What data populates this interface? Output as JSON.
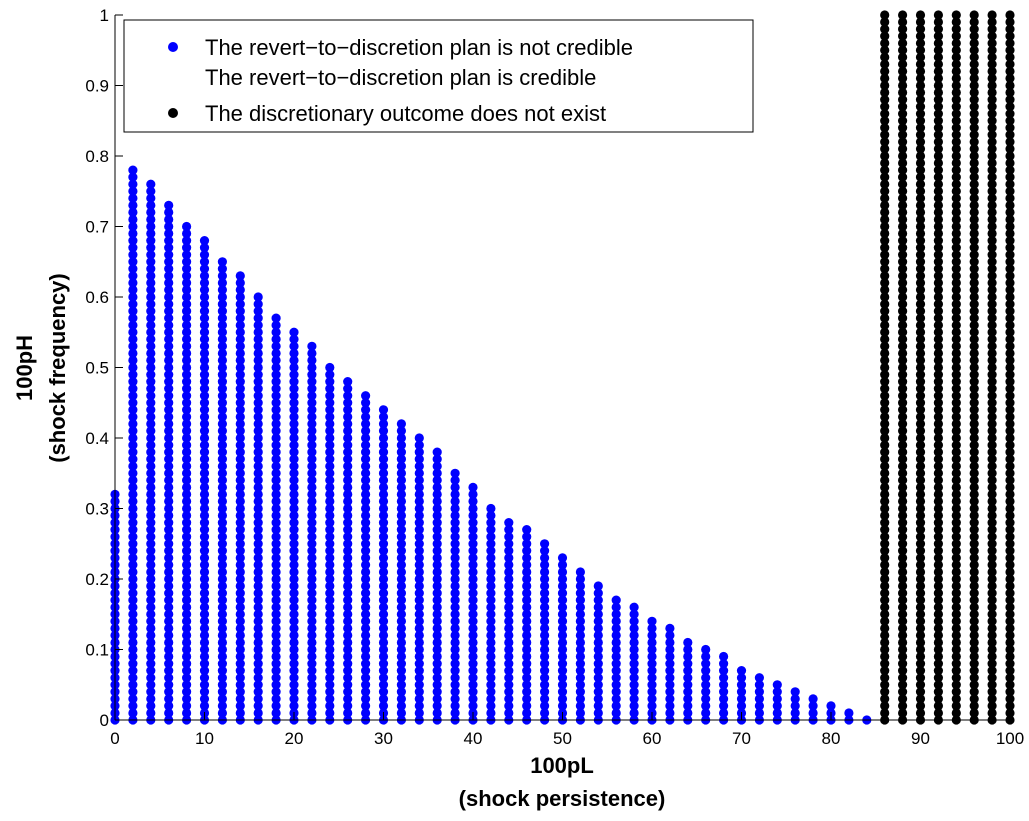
{
  "chart_data": {
    "type": "scatter",
    "title": "",
    "xlabel_lines": [
      "100pL",
      "(shock persistence)"
    ],
    "ylabel_lines": [
      "100pH",
      "(shock frequency)"
    ],
    "xlim": [
      0,
      100
    ],
    "ylim": [
      0,
      1
    ],
    "xticks": [
      "0",
      "10",
      "20",
      "30",
      "40",
      "50",
      "60",
      "70",
      "80",
      "90",
      "100"
    ],
    "yticks": [
      "0",
      "0.1",
      "0.2",
      "0.3",
      "0.4",
      "0.5",
      "0.6",
      "0.7",
      "0.8",
      "0.9",
      "1"
    ],
    "grid": false,
    "legend_position": "top-left",
    "legend": [
      {
        "label": "The revert−to−discretion plan is not credible",
        "color": "#0000ff",
        "marker": "dot"
      },
      {
        "label": "The revert−to−discretion plan is credible",
        "color": "",
        "marker": "none"
      },
      {
        "label": "The discretionary outcome does not exist",
        "color": "#000000",
        "marker": "dot"
      }
    ],
    "series": [
      {
        "name": "The revert−to−discretion plan is not credible",
        "color": "#0000ff",
        "y_step": 0.01,
        "columns": [
          {
            "x": 0,
            "ymax": 0.32
          },
          {
            "x": 2,
            "ymax": 0.78
          },
          {
            "x": 4,
            "ymax": 0.76
          },
          {
            "x": 6,
            "ymax": 0.73
          },
          {
            "x": 8,
            "ymax": 0.7
          },
          {
            "x": 10,
            "ymax": 0.68
          },
          {
            "x": 12,
            "ymax": 0.65
          },
          {
            "x": 14,
            "ymax": 0.63
          },
          {
            "x": 16,
            "ymax": 0.6
          },
          {
            "x": 18,
            "ymax": 0.57
          },
          {
            "x": 20,
            "ymax": 0.55
          },
          {
            "x": 22,
            "ymax": 0.53
          },
          {
            "x": 24,
            "ymax": 0.5
          },
          {
            "x": 26,
            "ymax": 0.48
          },
          {
            "x": 28,
            "ymax": 0.46
          },
          {
            "x": 30,
            "ymax": 0.44
          },
          {
            "x": 32,
            "ymax": 0.42
          },
          {
            "x": 34,
            "ymax": 0.4
          },
          {
            "x": 36,
            "ymax": 0.38
          },
          {
            "x": 38,
            "ymax": 0.35
          },
          {
            "x": 40,
            "ymax": 0.33
          },
          {
            "x": 42,
            "ymax": 0.3
          },
          {
            "x": 44,
            "ymax": 0.28
          },
          {
            "x": 46,
            "ymax": 0.27
          },
          {
            "x": 48,
            "ymax": 0.25
          },
          {
            "x": 50,
            "ymax": 0.23
          },
          {
            "x": 52,
            "ymax": 0.21
          },
          {
            "x": 54,
            "ymax": 0.19
          },
          {
            "x": 56,
            "ymax": 0.17
          },
          {
            "x": 58,
            "ymax": 0.16
          },
          {
            "x": 60,
            "ymax": 0.14
          },
          {
            "x": 62,
            "ymax": 0.13
          },
          {
            "x": 64,
            "ymax": 0.11
          },
          {
            "x": 66,
            "ymax": 0.1
          },
          {
            "x": 68,
            "ymax": 0.09
          },
          {
            "x": 70,
            "ymax": 0.07
          },
          {
            "x": 72,
            "ymax": 0.06
          },
          {
            "x": 74,
            "ymax": 0.05
          },
          {
            "x": 76,
            "ymax": 0.04
          },
          {
            "x": 78,
            "ymax": 0.03
          },
          {
            "x": 80,
            "ymax": 0.02
          },
          {
            "x": 82,
            "ymax": 0.01
          },
          {
            "x": 84,
            "ymax": 0.0
          }
        ]
      },
      {
        "name": "The discretionary outcome does not exist",
        "color": "#000000",
        "y_step": 0.01,
        "columns": [
          {
            "x": 86,
            "ymax": 1
          },
          {
            "x": 88,
            "ymax": 1
          },
          {
            "x": 90,
            "ymax": 1
          },
          {
            "x": 92,
            "ymax": 1
          },
          {
            "x": 94,
            "ymax": 1
          },
          {
            "x": 96,
            "ymax": 1
          },
          {
            "x": 98,
            "ymax": 1
          },
          {
            "x": 100,
            "ymax": 1
          }
        ]
      }
    ]
  }
}
